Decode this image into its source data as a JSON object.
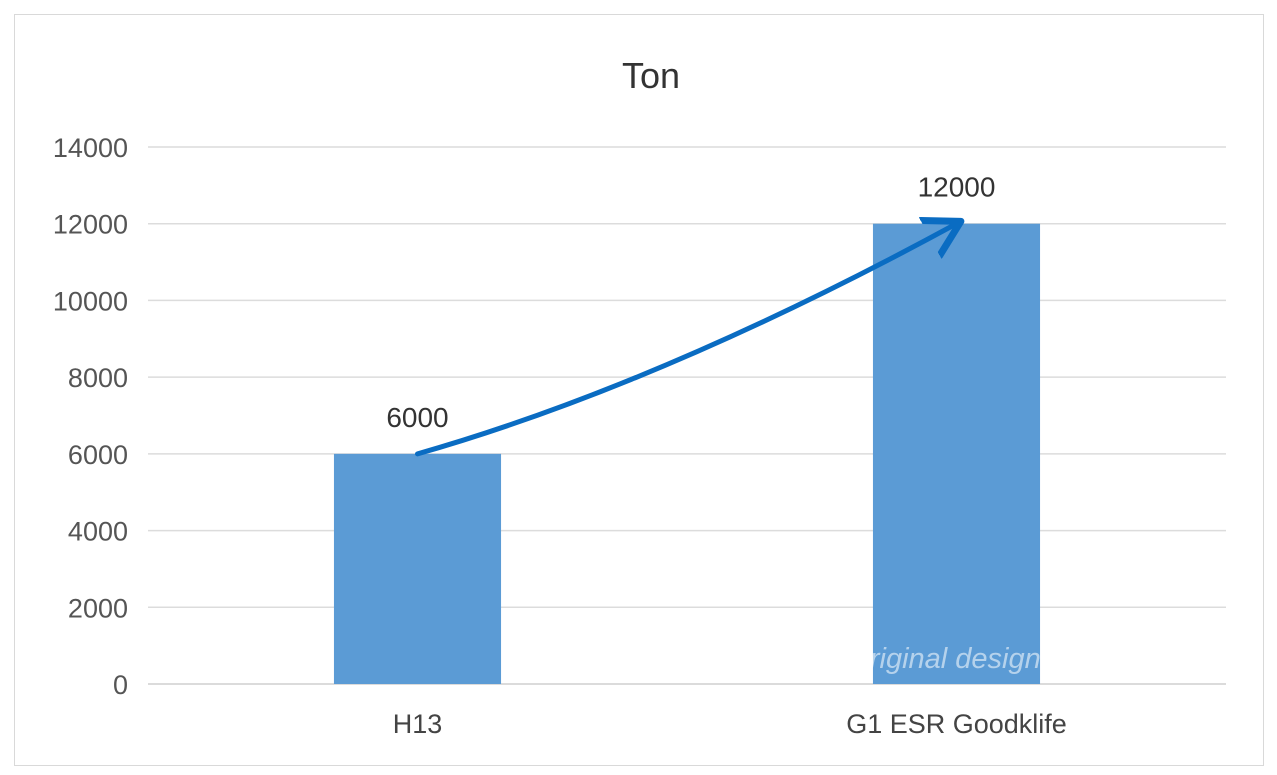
{
  "chart_data": {
    "type": "bar",
    "title": "Ton",
    "categories": [
      "H13",
      "G1 ESR Goodklife"
    ],
    "values": [
      6000,
      12000
    ],
    "data_labels": [
      "6000",
      "12000"
    ],
    "xlabel": "",
    "ylabel": "",
    "ylim": [
      0,
      14000
    ],
    "yticks": [
      0,
      2000,
      4000,
      6000,
      8000,
      10000,
      12000,
      14000
    ],
    "ytick_labels": [
      "0",
      "2000",
      "4000",
      "6000",
      "8000",
      "10000",
      "12000",
      "14000"
    ],
    "grid": true,
    "legend": "none",
    "bar_color": "#5B9BD5",
    "arrow_color": "#0A6CC2",
    "annotation": "arrow from H13 bar top to G1 ESR Goodklife bar top"
  },
  "watermark": "@original design by Goodklife"
}
